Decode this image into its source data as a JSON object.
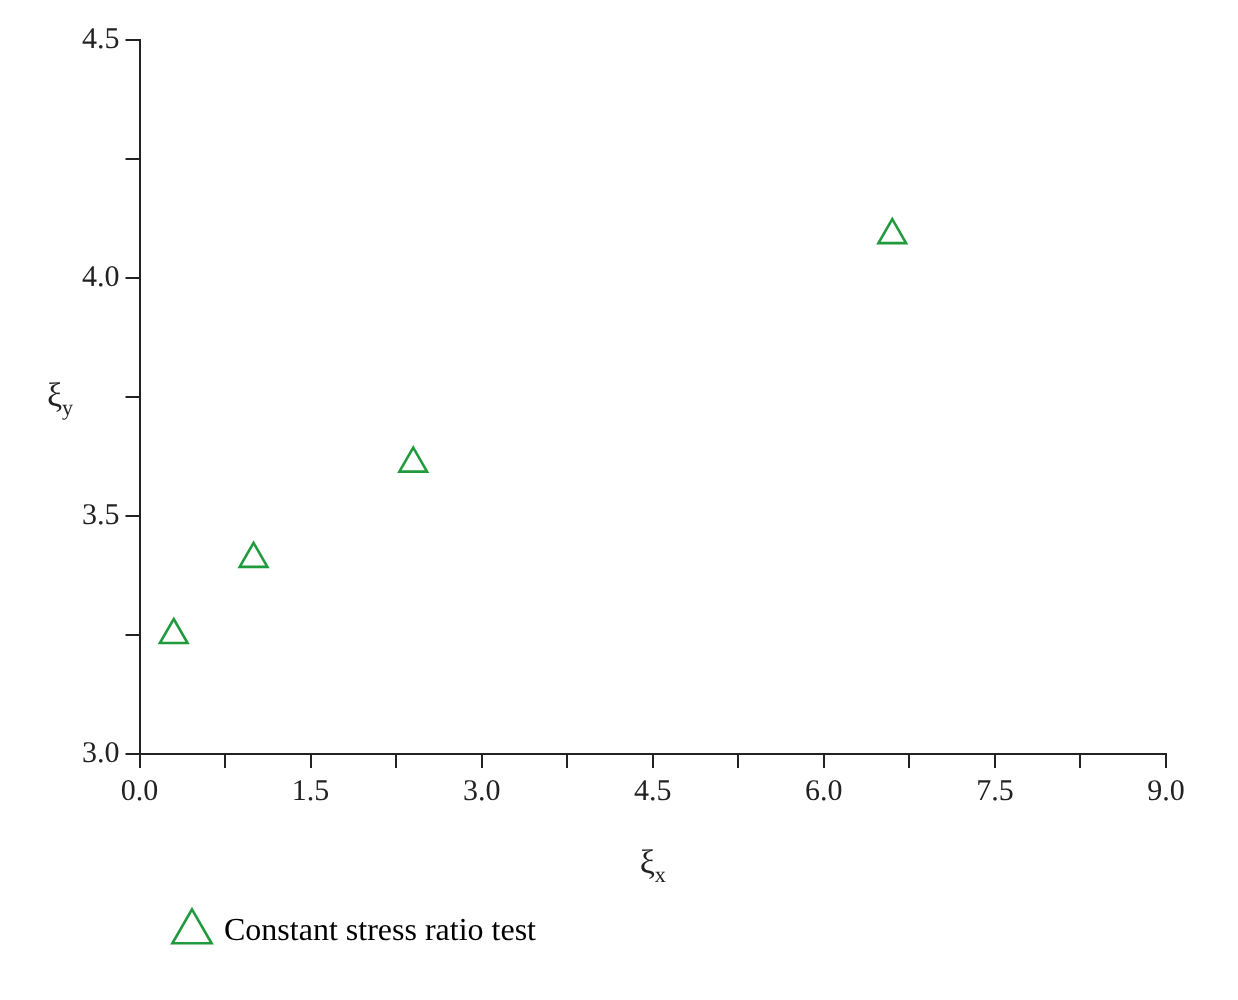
{
  "chart_data": {
    "type": "scatter",
    "xlabel": "ξ$_{x}$",
    "ylabel": "ξ$_{y}$",
    "series": [
      {
        "name": "Constant stress ratio test",
        "color": "#1f9a3c",
        "x": [
          0.3,
          1.0,
          2.4,
          6.6
        ],
        "values": [
          3.25,
          3.41,
          3.61,
          4.09
        ]
      }
    ],
    "marker": "triangle",
    "grid": false,
    "legend": "bottom left",
    "xlim": [
      0,
      9
    ],
    "ylim": [
      3,
      4.5
    ],
    "xticks": [
      {
        "value": 0,
        "label": "0.0"
      },
      {
        "value": 0.75,
        "label": null
      },
      {
        "value": 1.5,
        "label": "1.5"
      },
      {
        "value": 2.25,
        "label": null
      },
      {
        "value": 3,
        "label": "3.0"
      },
      {
        "value": 3.75,
        "label": null
      },
      {
        "value": 4.5,
        "label": "4.5"
      },
      {
        "value": 5.25,
        "label": null
      },
      {
        "value": 6,
        "label": "6.0"
      },
      {
        "value": 6.75,
        "label": null
      },
      {
        "value": 7.5,
        "label": "7.5"
      },
      {
        "value": 8.25,
        "label": null
      },
      {
        "value": 9,
        "label": "9.0"
      }
    ],
    "yticks": [
      {
        "value": 3,
        "label": "3.0"
      },
      {
        "value": 3.25,
        "label": null
      },
      {
        "value": 3.5,
        "label": "3.5"
      },
      {
        "value": 3.75,
        "label": null
      },
      {
        "value": 4,
        "label": "4.0"
      },
      {
        "value": 4.25,
        "label": null
      },
      {
        "value": 4.5,
        "label": "4.5"
      }
    ]
  }
}
